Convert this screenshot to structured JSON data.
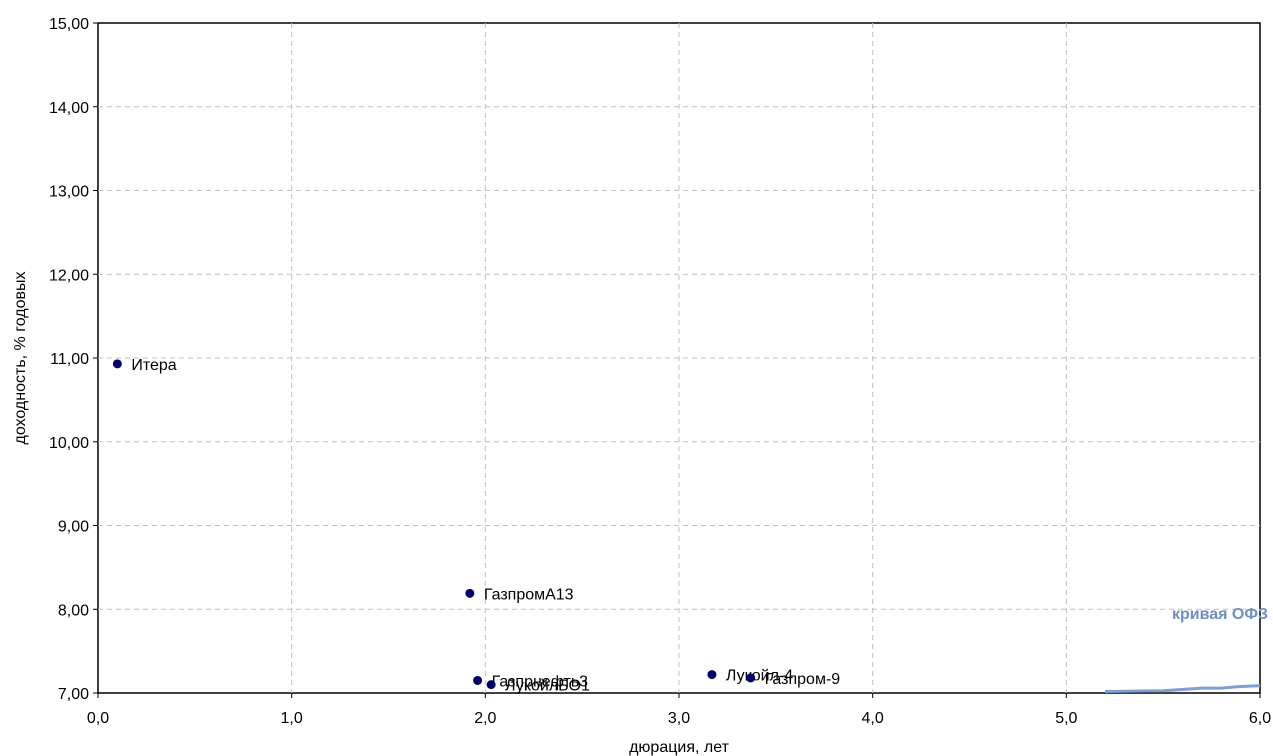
{
  "chart_data": {
    "type": "scatter",
    "title": "",
    "xlabel": "дюрация, лет",
    "ylabel": "доходность, % годовых",
    "xlim": [
      0,
      6
    ],
    "ylim": [
      7,
      15
    ],
    "x_ticks": [
      0,
      1,
      2,
      3,
      4,
      5,
      6
    ],
    "y_ticks": [
      7,
      8,
      9,
      10,
      11,
      12,
      13,
      14,
      15
    ],
    "x_tick_labels": [
      "0,0",
      "1,0",
      "2,0",
      "3,0",
      "4,0",
      "5,0",
      "6,0"
    ],
    "y_tick_labels": [
      "7,00",
      "8,00",
      "9,00",
      "10,00",
      "11,00",
      "12,00",
      "13,00",
      "14,00",
      "15,00"
    ],
    "grid": true,
    "point_color": "#000066",
    "points": [
      {
        "label": "Итера",
        "x": 0.1,
        "y": 10.93
      },
      {
        "label": "ГазпромА13",
        "x": 1.92,
        "y": 8.19
      },
      {
        "label": "Газпрнефть3",
        "x": 1.96,
        "y": 7.15
      },
      {
        "label": "ЛукойлБО1",
        "x": 2.03,
        "y": 7.1
      },
      {
        "label": "Лукойл-4",
        "x": 3.17,
        "y": 7.22
      },
      {
        "label": "Газпром-9",
        "x": 3.37,
        "y": 7.18
      }
    ],
    "curve": {
      "name": "кривая ОФЗ",
      "color": "#7f9fcf",
      "x": [
        5.2,
        5.5,
        5.7,
        5.8,
        5.9,
        6.0
      ],
      "y": [
        7.0,
        7.01,
        7.04,
        7.04,
        7.06,
        7.07
      ]
    }
  }
}
